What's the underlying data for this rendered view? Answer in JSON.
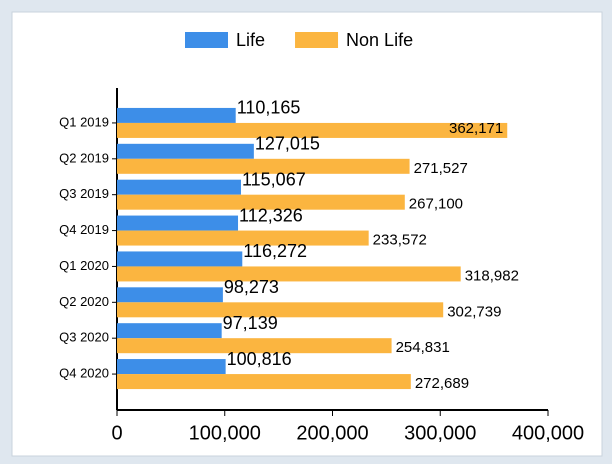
{
  "chart_data": {
    "type": "barh",
    "categories": [
      "Q1 2019",
      "Q2 2019",
      "Q3 2019",
      "Q4 2019",
      "Q1 2020",
      "Q2 2020",
      "Q3 2020",
      "Q4 2020"
    ],
    "series": [
      {
        "name": "Life",
        "color": "#3d8ee8",
        "values": [
          110165,
          127015,
          115067,
          112326,
          116272,
          98273,
          97139,
          100816
        ],
        "value_labels": [
          "110,165",
          "127,015",
          "115,067",
          "112,326",
          "116,272",
          "98,273",
          "97,139",
          "100,816"
        ]
      },
      {
        "name": "Non Life",
        "color": "#fbb540",
        "values": [
          362171,
          271527,
          267100,
          233572,
          318982,
          302739,
          254831,
          272689
        ],
        "value_labels": [
          "362,171",
          "271,527",
          "267,100",
          "233,572",
          "318,982",
          "302,739",
          "254,831",
          "272,689"
        ]
      }
    ],
    "xlim": [
      0,
      400000
    ],
    "xticks": [
      0,
      {
        "value": 100000,
        "label": "100,000"
      },
      {
        "value": 200000,
        "label": "200,000"
      },
      {
        "value": 300000,
        "label": "300,000"
      },
      {
        "value": 400000,
        "label": "400,000"
      }
    ],
    "legend": "top"
  }
}
